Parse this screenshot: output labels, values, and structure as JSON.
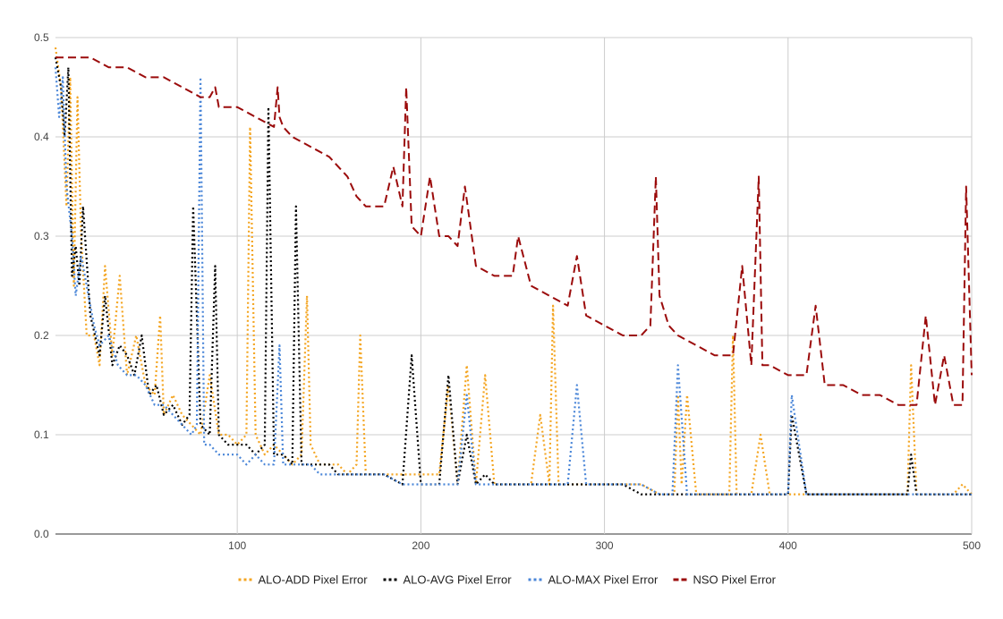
{
  "chart_data": {
    "type": "line",
    "title": "",
    "xlabel": "",
    "ylabel": "",
    "xlim": [
      1,
      500
    ],
    "ylim": [
      0,
      0.5
    ],
    "x_ticks": [
      100,
      200,
      300,
      400,
      500
    ],
    "y_ticks": [
      0.0,
      0.1,
      0.2,
      0.3,
      0.4,
      0.5
    ],
    "x_tick_labels": [
      "100",
      "200",
      "300",
      "400",
      "500"
    ],
    "y_tick_labels": [
      "0.0",
      "0.1",
      "0.2",
      "0.3",
      "0.4",
      "0.5"
    ],
    "grid": true,
    "legend_position": "bottom",
    "series": [
      {
        "name": "ALO-ADD Pixel Error",
        "color": "#f4a521",
        "dash": "dotted",
        "x": [
          1,
          4,
          7,
          9,
          11,
          13,
          15,
          18,
          22,
          25,
          28,
          32,
          36,
          40,
          45,
          50,
          55,
          58,
          60,
          65,
          70,
          75,
          80,
          85,
          90,
          95,
          100,
          105,
          107,
          110,
          115,
          120,
          125,
          130,
          135,
          138,
          140,
          145,
          150,
          155,
          160,
          165,
          167,
          170,
          180,
          190,
          200,
          210,
          215,
          220,
          225,
          230,
          235,
          240,
          250,
          260,
          265,
          270,
          272,
          275,
          280,
          290,
          300,
          310,
          320,
          330,
          338,
          340,
          342,
          345,
          350,
          360,
          368,
          370,
          372,
          380,
          385,
          390,
          400,
          410,
          420,
          430,
          440,
          450,
          460,
          465,
          467,
          470,
          480,
          490,
          495,
          500
        ],
        "y": [
          0.49,
          0.45,
          0.33,
          0.46,
          0.25,
          0.44,
          0.3,
          0.2,
          0.2,
          0.17,
          0.27,
          0.18,
          0.26,
          0.16,
          0.2,
          0.15,
          0.14,
          0.22,
          0.12,
          0.14,
          0.12,
          0.11,
          0.1,
          0.16,
          0.1,
          0.1,
          0.09,
          0.1,
          0.41,
          0.1,
          0.08,
          0.09,
          0.08,
          0.07,
          0.08,
          0.24,
          0.09,
          0.07,
          0.07,
          0.07,
          0.06,
          0.07,
          0.2,
          0.06,
          0.06,
          0.06,
          0.06,
          0.06,
          0.15,
          0.05,
          0.17,
          0.05,
          0.16,
          0.05,
          0.05,
          0.05,
          0.12,
          0.05,
          0.23,
          0.05,
          0.05,
          0.05,
          0.05,
          0.05,
          0.05,
          0.04,
          0.04,
          0.14,
          0.05,
          0.14,
          0.04,
          0.04,
          0.04,
          0.2,
          0.04,
          0.04,
          0.1,
          0.04,
          0.04,
          0.04,
          0.04,
          0.04,
          0.04,
          0.04,
          0.04,
          0.04,
          0.17,
          0.04,
          0.04,
          0.04,
          0.05,
          0.04
        ]
      },
      {
        "name": "ALO-AVG Pixel Error",
        "color": "#000000",
        "dash": "dotted",
        "x": [
          1,
          4,
          6,
          8,
          10,
          12,
          14,
          16,
          20,
          25,
          28,
          32,
          36,
          40,
          44,
          48,
          52,
          56,
          60,
          65,
          70,
          74,
          76,
          80,
          85,
          88,
          90,
          95,
          100,
          105,
          110,
          115,
          117,
          120,
          125,
          130,
          132,
          135,
          140,
          145,
          150,
          155,
          160,
          165,
          170,
          180,
          190,
          195,
          200,
          210,
          215,
          220,
          225,
          230,
          235,
          240,
          250,
          260,
          270,
          280,
          290,
          300,
          310,
          320,
          330,
          340,
          350,
          360,
          370,
          380,
          390,
          400,
          402,
          410,
          420,
          430,
          440,
          450,
          460,
          465,
          467,
          470,
          480,
          490,
          500
        ],
        "y": [
          0.48,
          0.45,
          0.4,
          0.47,
          0.26,
          0.29,
          0.25,
          0.33,
          0.22,
          0.18,
          0.24,
          0.17,
          0.19,
          0.18,
          0.16,
          0.2,
          0.14,
          0.15,
          0.12,
          0.13,
          0.11,
          0.12,
          0.33,
          0.11,
          0.1,
          0.27,
          0.1,
          0.09,
          0.09,
          0.09,
          0.08,
          0.09,
          0.43,
          0.08,
          0.08,
          0.07,
          0.33,
          0.07,
          0.07,
          0.07,
          0.07,
          0.06,
          0.06,
          0.06,
          0.06,
          0.06,
          0.05,
          0.18,
          0.05,
          0.05,
          0.16,
          0.05,
          0.1,
          0.05,
          0.06,
          0.05,
          0.05,
          0.05,
          0.05,
          0.05,
          0.05,
          0.05,
          0.05,
          0.04,
          0.04,
          0.04,
          0.04,
          0.04,
          0.04,
          0.04,
          0.04,
          0.04,
          0.12,
          0.04,
          0.04,
          0.04,
          0.04,
          0.04,
          0.04,
          0.04,
          0.08,
          0.04,
          0.04,
          0.04,
          0.04
        ]
      },
      {
        "name": "ALO-MAX Pixel Error",
        "color": "#4a86d8",
        "dash": "dotted",
        "x": [
          1,
          3,
          5,
          7,
          10,
          12,
          15,
          18,
          22,
          25,
          30,
          35,
          40,
          45,
          50,
          55,
          60,
          65,
          70,
          75,
          78,
          80,
          82,
          85,
          90,
          95,
          100,
          105,
          110,
          115,
          120,
          123,
          125,
          130,
          135,
          140,
          145,
          150,
          160,
          170,
          180,
          190,
          200,
          210,
          220,
          225,
          230,
          240,
          250,
          260,
          270,
          280,
          285,
          290,
          300,
          310,
          320,
          330,
          337,
          340,
          345,
          350,
          360,
          370,
          380,
          390,
          400,
          402,
          410,
          420,
          430,
          440,
          450,
          460,
          470,
          480,
          490,
          500
        ],
        "y": [
          0.47,
          0.42,
          0.46,
          0.35,
          0.3,
          0.24,
          0.28,
          0.25,
          0.21,
          0.19,
          0.2,
          0.17,
          0.16,
          0.16,
          0.15,
          0.13,
          0.13,
          0.12,
          0.11,
          0.1,
          0.11,
          0.46,
          0.09,
          0.09,
          0.08,
          0.08,
          0.08,
          0.07,
          0.08,
          0.07,
          0.07,
          0.19,
          0.07,
          0.07,
          0.07,
          0.07,
          0.06,
          0.06,
          0.06,
          0.06,
          0.06,
          0.05,
          0.05,
          0.05,
          0.05,
          0.14,
          0.05,
          0.05,
          0.05,
          0.05,
          0.05,
          0.05,
          0.15,
          0.05,
          0.05,
          0.05,
          0.05,
          0.04,
          0.04,
          0.17,
          0.04,
          0.04,
          0.04,
          0.04,
          0.04,
          0.04,
          0.04,
          0.14,
          0.04,
          0.04,
          0.04,
          0.04,
          0.04,
          0.04,
          0.04,
          0.04,
          0.04,
          0.04
        ]
      },
      {
        "name": "NSO Pixel Error",
        "color": "#9b0b0b",
        "dash": "dashed",
        "x": [
          1,
          10,
          20,
          30,
          40,
          50,
          60,
          70,
          80,
          85,
          88,
          90,
          95,
          100,
          110,
          120,
          122,
          123,
          125,
          130,
          140,
          150,
          160,
          165,
          170,
          180,
          185,
          190,
          192,
          195,
          200,
          205,
          210,
          215,
          220,
          224,
          230,
          240,
          250,
          253,
          260,
          270,
          280,
          285,
          290,
          300,
          310,
          320,
          325,
          328,
          330,
          335,
          340,
          350,
          360,
          370,
          375,
          380,
          384,
          386,
          390,
          400,
          410,
          415,
          420,
          430,
          440,
          450,
          460,
          470,
          475,
          480,
          485,
          490,
          495,
          497,
          500
        ],
        "y": [
          0.48,
          0.48,
          0.48,
          0.47,
          0.47,
          0.46,
          0.46,
          0.45,
          0.44,
          0.44,
          0.45,
          0.43,
          0.43,
          0.43,
          0.42,
          0.41,
          0.45,
          0.42,
          0.41,
          0.4,
          0.39,
          0.38,
          0.36,
          0.34,
          0.33,
          0.33,
          0.37,
          0.33,
          0.45,
          0.31,
          0.3,
          0.36,
          0.3,
          0.3,
          0.29,
          0.35,
          0.27,
          0.26,
          0.26,
          0.3,
          0.25,
          0.24,
          0.23,
          0.28,
          0.22,
          0.21,
          0.2,
          0.2,
          0.21,
          0.36,
          0.24,
          0.21,
          0.2,
          0.19,
          0.18,
          0.18,
          0.27,
          0.17,
          0.36,
          0.17,
          0.17,
          0.16,
          0.16,
          0.23,
          0.15,
          0.15,
          0.14,
          0.14,
          0.13,
          0.13,
          0.22,
          0.13,
          0.18,
          0.13,
          0.13,
          0.35,
          0.16
        ]
      }
    ]
  }
}
